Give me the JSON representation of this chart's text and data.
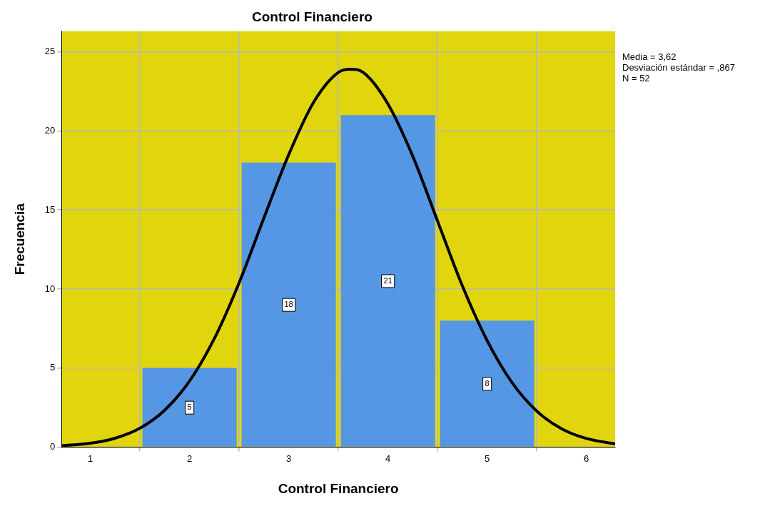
{
  "chart_data": {
    "type": "histogram",
    "title": "Control Financiero",
    "xlabel": "Control Financiero",
    "ylabel": "Frecuencia",
    "bins": [
      1.5,
      2.5,
      3.5,
      4.5,
      5.5
    ],
    "values": [
      5,
      18,
      21,
      8
    ],
    "color": "#5597e4",
    "value_labels": [
      "5",
      "18",
      "21",
      "8"
    ],
    "series": [
      {
        "type": "line",
        "color": "#000000",
        "x": [
          0.71,
          1,
          1.25,
          1.5,
          1.75,
          2,
          2.25,
          2.5,
          2.75,
          3,
          3.25,
          3.5,
          3.62,
          3.75,
          4,
          4.25,
          4.5,
          4.75,
          5,
          5.25,
          5.5,
          5.75,
          6,
          6.29
        ],
        "values": [
          0.09,
          0.25,
          0.57,
          1.2,
          2.34,
          4.18,
          6.87,
          10.4,
          14.5,
          18.5,
          21.8,
          23.7,
          23.9,
          23.7,
          21.7,
          18.4,
          14.3,
          10.2,
          6.74,
          4.09,
          2.28,
          1.17,
          0.55,
          0.21
        ]
      }
    ],
    "xlim": [
      0.71,
      6.29
    ],
    "xticks": [
      1,
      2,
      3,
      4,
      5,
      6
    ],
    "ylim": [
      0,
      26.3
    ],
    "yticks": [
      0,
      5,
      10,
      15,
      20,
      25
    ],
    "grid": true,
    "marker": "none",
    "annotations": [
      "Media = 3,62",
      "Desviación estándar = ,867",
      "N = 52"
    ]
  }
}
